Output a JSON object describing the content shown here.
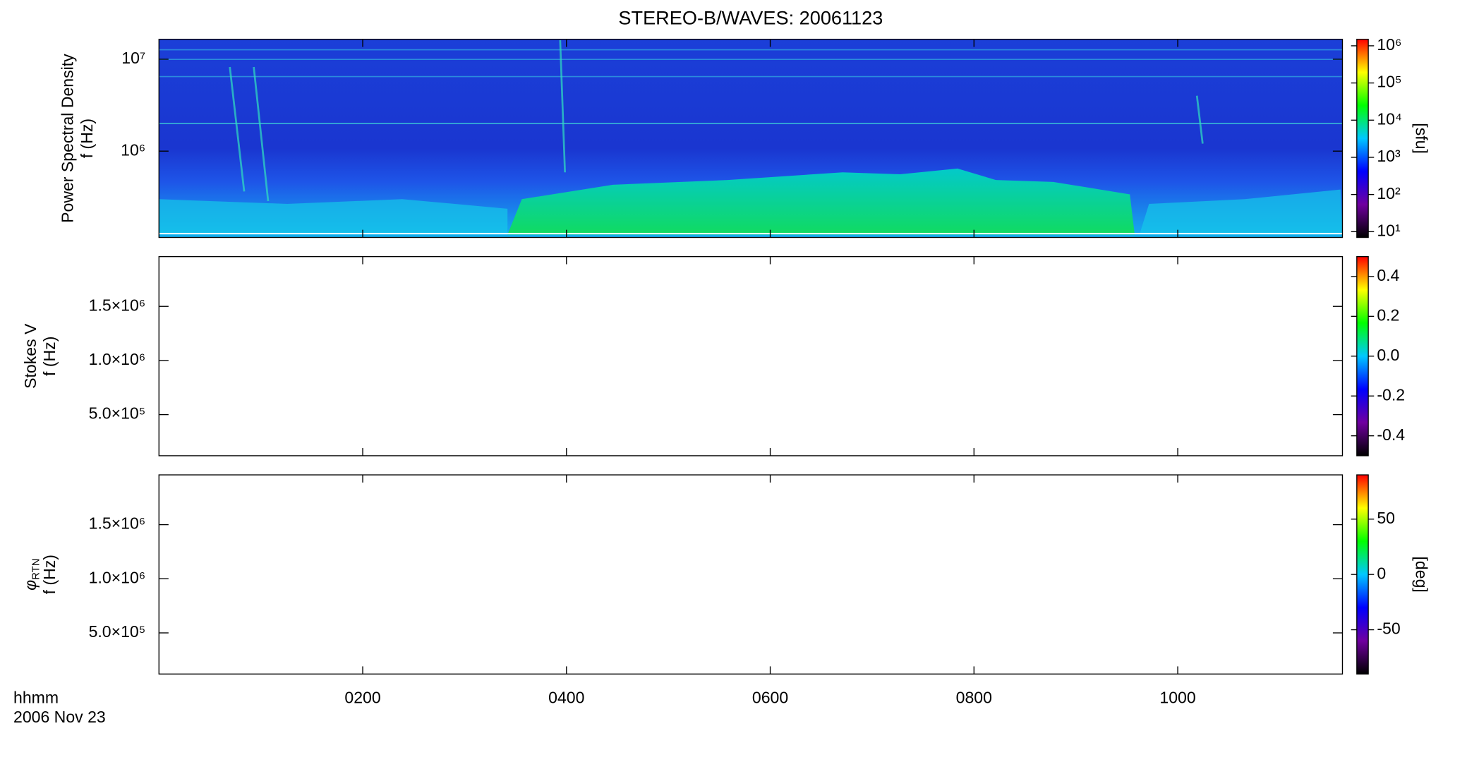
{
  "figure": {
    "title": "STEREO-B/WAVES: 20061123",
    "x_label": "hhmm",
    "date": "2006 Nov 23",
    "xlim": [
      0,
      697
    ],
    "xticks": [
      {
        "value": 120,
        "label": "0200"
      },
      {
        "value": 240,
        "label": "0400"
      },
      {
        "value": 360,
        "label": "0600"
      },
      {
        "value": 480,
        "label": "0800"
      },
      {
        "value": 600,
        "label": "1000"
      }
    ],
    "colormap": [
      "#000000",
      "#7000a0",
      "#0000ff",
      "#00c8ff",
      "#00ff00",
      "#ffff00",
      "#ff0000"
    ]
  },
  "chart_data": [
    {
      "type": "spectrogram",
      "ylabel": "Power Spectral Density",
      "ylabel2": "f (Hz)",
      "log": true,
      "ylim": [
        115000,
        16500000
      ],
      "yticks": [
        {
          "value": 1000000,
          "label": "10⁶"
        },
        {
          "value": 10000000,
          "label": "10⁷"
        }
      ],
      "clim": [
        7,
        1500000
      ],
      "clog": true,
      "cticks": [
        {
          "value": 10,
          "label": "10¹"
        },
        {
          "value": 100,
          "label": "10²"
        },
        {
          "value": 1000,
          "label": "10³"
        },
        {
          "value": 10000,
          "label": "10⁴"
        },
        {
          "value": 100000,
          "label": "10⁵"
        },
        {
          "value": 1000000,
          "label": "10⁶"
        }
      ],
      "clabel": "[sfu]"
    },
    {
      "type": "spectrogram",
      "ylabel": "Stokes V",
      "ylabel2": "f (Hz)",
      "log": false,
      "ylim": [
        120000,
        1960000
      ],
      "yticks": [
        {
          "value": 500000,
          "label": "5.0×10⁵"
        },
        {
          "value": 1000000,
          "label": "1.0×10⁶"
        },
        {
          "value": 1500000,
          "label": "1.5×10⁶"
        }
      ],
      "clim": [
        -0.5,
        0.5
      ],
      "clog": false,
      "cticks": [
        -0.4,
        -0.2,
        {
          "value": 0,
          "label": "0.0"
        },
        0.2,
        0.4
      ]
    },
    {
      "type": "spectrogram",
      "ylabel": "φ",
      "ylabel_sub": "RTN",
      "ylabel2": "f (Hz)",
      "log": false,
      "ylim": [
        120000,
        1960000
      ],
      "yticks": [
        {
          "value": 500000,
          "label": "5.0×10⁵"
        },
        {
          "value": 1000000,
          "label": "1.0×10⁶"
        },
        {
          "value": 1500000,
          "label": "1.5×10⁶"
        }
      ],
      "clim": [
        -90,
        90
      ],
      "clog": false,
      "cticks": [
        -50,
        0,
        50
      ],
      "clabel": "[deg]"
    }
  ]
}
